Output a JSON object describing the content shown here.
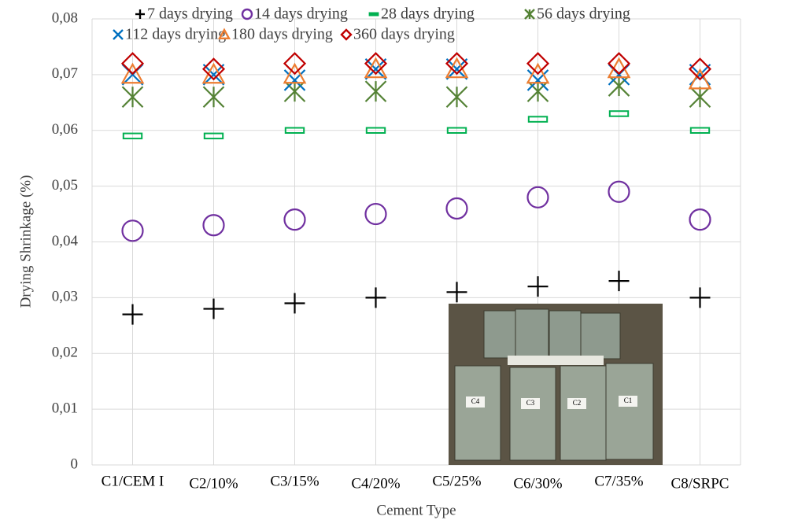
{
  "chart_data": {
    "type": "scatter",
    "y_label": "Drying Shrinkage (%)",
    "x_label": "Cement Type",
    "categories": [
      "C1/CEM I",
      "C2/10%",
      "C3/15%",
      "C4/20%",
      "C5/25%",
      "C6/30%",
      "C7/35%",
      "C8/SRPC"
    ],
    "ylim": [
      0,
      0.08
    ],
    "yticks": [
      0,
      {
        "value": 0.01,
        "label": "0,01"
      },
      {
        "value": 0.02,
        "label": "0,02"
      },
      {
        "value": 0.03,
        "label": "0,03"
      },
      {
        "value": 0.04,
        "label": "0,04"
      },
      {
        "value": 0.05,
        "label": "0,05"
      },
      {
        "value": 0.06,
        "label": "0,06"
      },
      {
        "value": 0.07,
        "label": "0,07"
      },
      {
        "value": 0.08,
        "label": "0,08"
      }
    ],
    "grid": true,
    "legend": "top",
    "series": [
      {
        "name": "7 days drying",
        "color": "#000000",
        "marker": "plus",
        "values": [
          0.027,
          0.028,
          0.029,
          0.03,
          0.031,
          0.032,
          0.033,
          0.03
        ]
      },
      {
        "name": "14 days drying",
        "color": "#7030a0",
        "marker": "circle",
        "values": [
          0.042,
          0.043,
          0.044,
          0.045,
          0.046,
          0.048,
          0.049,
          0.044
        ]
      },
      {
        "name": "28 days drying",
        "color": "#00b050",
        "marker": "dash",
        "values": [
          0.059,
          0.059,
          0.06,
          0.06,
          0.06,
          0.062,
          0.063,
          0.06
        ]
      },
      {
        "name": "56 days drying",
        "color": "#548235",
        "marker": "star",
        "values": [
          0.066,
          0.066,
          0.067,
          0.067,
          0.066,
          0.067,
          0.068,
          0.066
        ]
      },
      {
        "name": "112 days drying",
        "color": "#0070c0",
        "marker": "cross",
        "values": [
          0.07,
          0.07,
          0.069,
          0.071,
          0.071,
          0.069,
          0.07,
          0.07
        ]
      },
      {
        "name": "180 days drying",
        "color": "#ed7d31",
        "marker": "triangle",
        "values": [
          0.07,
          0.07,
          0.07,
          0.071,
          0.071,
          0.07,
          0.071,
          0.069
        ]
      },
      {
        "name": "360 days drying",
        "color": "#c00000",
        "marker": "diamond",
        "values": [
          0.072,
          0.071,
          0.072,
          0.072,
          0.072,
          0.072,
          0.072,
          0.071
        ]
      }
    ],
    "inset_labels": [
      "C4",
      "C3",
      "C2",
      "C1"
    ]
  }
}
